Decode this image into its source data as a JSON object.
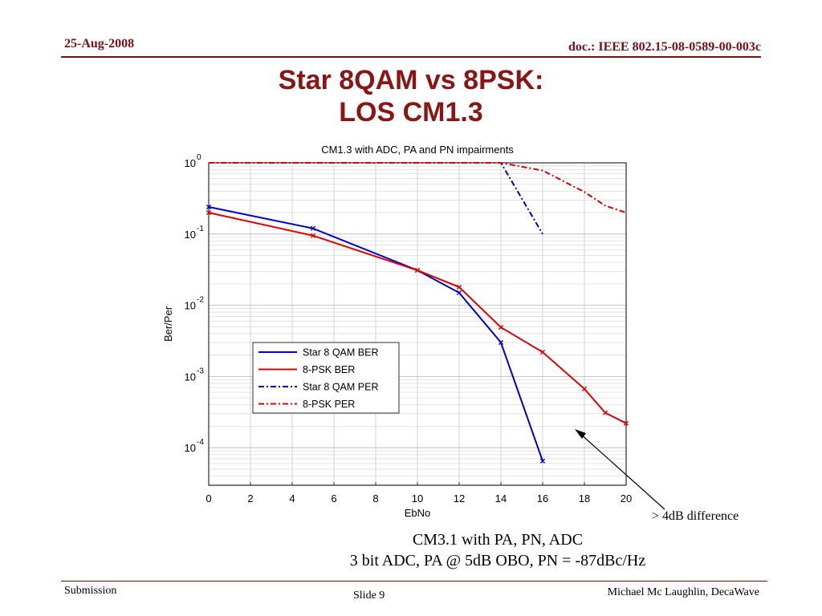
{
  "header": {
    "date": "25-Aug-2008",
    "doc": "doc.: IEEE 802.15-08-0589-00-003c"
  },
  "slide_title": [
    "Star 8QAM vs 8PSK:",
    "LOS CM1.3"
  ],
  "caption": [
    "CM3.1 with PA, PN, ADC",
    "3 bit ADC, PA @ 5dB OBO, PN = -87dBc/Hz"
  ],
  "annotation": "> 4dB difference",
  "footer": {
    "left": "Submission",
    "slide": "Slide 9",
    "author": "Michael Mc Laughlin, DecaWave"
  },
  "chart_data": {
    "type": "line",
    "title": "CM1.3 with ADC, PA and PN impairments",
    "xlabel": "EbNo",
    "ylabel": "Ber/Per",
    "xlim": [
      0,
      20
    ],
    "ylim": [
      3e-05,
      1
    ],
    "yscale": "log",
    "grid": true,
    "legend_position": "center",
    "x_ticks": [
      "0",
      "2",
      "4",
      "6",
      "8",
      "10",
      "12",
      "14",
      "16",
      "18",
      "20"
    ],
    "y_ticks": [
      {
        "base": "10",
        "exp": "0"
      },
      {
        "base": "10",
        "exp": "-1"
      },
      {
        "base": "10",
        "exp": "-2"
      },
      {
        "base": "10",
        "exp": "-3"
      },
      {
        "base": "10",
        "exp": "-4"
      }
    ],
    "series": [
      {
        "name": "Star 8 QAM BER",
        "color": "#0000cc",
        "style": "solid",
        "markers": true,
        "x": [
          0,
          5,
          10,
          12,
          14,
          16
        ],
        "y": [
          0.24,
          0.12,
          0.031,
          0.015,
          0.003,
          6.5e-05
        ]
      },
      {
        "name": "8-PSK BER",
        "color": "#dd0000",
        "style": "solid",
        "markers": true,
        "x": [
          0,
          5,
          10,
          12,
          14,
          16,
          18,
          19,
          20
        ],
        "y": [
          0.2,
          0.095,
          0.031,
          0.018,
          0.0049,
          0.0022,
          0.00067,
          0.00031,
          0.00022
        ]
      },
      {
        "name": "Star 8 QAM PER",
        "color": "#0000cc",
        "style": "dashdot",
        "markers": false,
        "x": [
          0,
          14,
          16
        ],
        "y": [
          1,
          1,
          0.1
        ]
      },
      {
        "name": "8-PSK PER",
        "color": "#dd0000",
        "style": "dashdot",
        "markers": false,
        "x": [
          0,
          14,
          16,
          18,
          19,
          20
        ],
        "y": [
          1,
          1,
          0.78,
          0.39,
          0.25,
          0.2
        ]
      }
    ]
  }
}
